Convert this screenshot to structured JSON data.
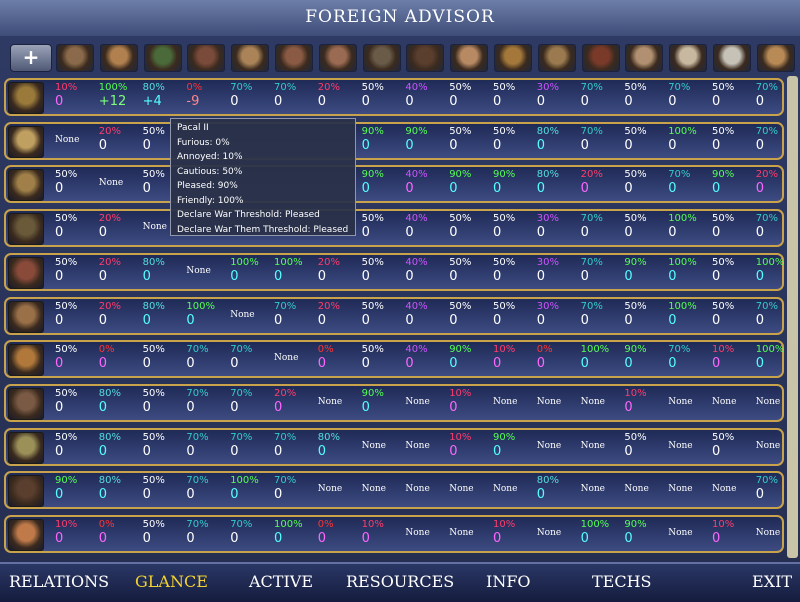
{
  "title": "FOREIGN ADVISOR",
  "header": {
    "zoom_glyph": "+",
    "portrait_colors": [
      "#8a6a4a",
      "#b0804e",
      "#4a6a3a",
      "#7a4a3a",
      "#aa8458",
      "#8a5a44",
      "#9a6a52",
      "#6a5a48",
      "#5a3e2e",
      "#b88a64",
      "#a4783a",
      "#9a7a4e",
      "#7a3a2a",
      "#b09070",
      "#c8b8a0",
      "#c6c2b8",
      "#b88a56"
    ]
  },
  "rows": [
    {
      "portrait": "#9a7a3a",
      "cells": [
        [
          "10%",
          "#ff3d6d",
          "0",
          "#ff66ff"
        ],
        [
          "100%",
          "#55ff55",
          "+12",
          "#7dff7d"
        ],
        [
          "80%",
          "#55dddd",
          "+4",
          "#55ffff"
        ],
        [
          "0%",
          "#ff3333",
          "-9",
          "#ff8888"
        ],
        [
          "70%",
          "#33cccc",
          "0",
          "#ffffff"
        ],
        [
          "70%",
          "#33cccc",
          "0",
          "#ffffff"
        ],
        [
          "20%",
          "#ff3d6d",
          "0",
          "#ffffff"
        ],
        [
          "50%",
          "#ffffff",
          "0",
          "#ffffff"
        ],
        [
          "40%",
          "#cc55ff",
          "0",
          "#ffffff"
        ],
        [
          "50%",
          "#ffffff",
          "0",
          "#ffffff"
        ],
        [
          "50%",
          "#ffffff",
          "0",
          "#ffffff"
        ],
        [
          "30%",
          "#cc55ff",
          "0",
          "#ffffff"
        ],
        [
          "70%",
          "#33cccc",
          "0",
          "#ffffff"
        ],
        [
          "50%",
          "#ffffff",
          "0",
          "#ffffff"
        ],
        [
          "70%",
          "#33cccc",
          "0",
          "#ffffff"
        ],
        [
          "50%",
          "#ffffff",
          "0",
          "#ffffff"
        ],
        [
          "70%",
          "#33cccc",
          "0",
          "#ffffff"
        ]
      ]
    },
    {
      "portrait": "#c0a060",
      "cells": [
        [
          "None",
          "",
          "",
          ""
        ],
        [
          "20%",
          "#ff3d6d",
          "0",
          "#ffffff"
        ],
        [
          "50%",
          "#ffffff",
          "0",
          "#ffffff"
        ],
        [
          "",
          "",
          "",
          ""
        ],
        [
          "",
          "",
          "",
          ""
        ],
        [
          "",
          "",
          "",
          ""
        ],
        [
          "",
          "",
          "",
          ""
        ],
        [
          "90%",
          "#55ff55",
          "0",
          "#55ffff"
        ],
        [
          "90%",
          "#55ff55",
          "0",
          "#55ffff"
        ],
        [
          "50%",
          "#ffffff",
          "0",
          "#ffffff"
        ],
        [
          "50%",
          "#ffffff",
          "0",
          "#ffffff"
        ],
        [
          "80%",
          "#55dddd",
          "0",
          "#55ffff"
        ],
        [
          "70%",
          "#33cccc",
          "0",
          "#ffffff"
        ],
        [
          "50%",
          "#ffffff",
          "0",
          "#ffffff"
        ],
        [
          "100%",
          "#55ff55",
          "0",
          "#ffffff"
        ],
        [
          "50%",
          "#ffffff",
          "0",
          "#ffffff"
        ],
        [
          "70%",
          "#33cccc",
          "0",
          "#ffffff"
        ]
      ]
    },
    {
      "portrait": "#a08048",
      "cells": [
        [
          "50%",
          "#ffffff",
          "0",
          "#ffffff"
        ],
        [
          "None",
          "",
          "",
          ""
        ],
        [
          "50%",
          "#ffffff",
          "0",
          "#ffffff"
        ],
        [
          "",
          "",
          "",
          ""
        ],
        [
          "",
          "",
          "",
          ""
        ],
        [
          "",
          "",
          "",
          ""
        ],
        [
          "",
          "",
          "",
          ""
        ],
        [
          "90%",
          "#55ff55",
          "0",
          "#55ffff"
        ],
        [
          "40%",
          "#cc55ff",
          "0",
          "#ff66ff"
        ],
        [
          "90%",
          "#55ff55",
          "0",
          "#55ffff"
        ],
        [
          "90%",
          "#55ff55",
          "0",
          "#55ffff"
        ],
        [
          "80%",
          "#55dddd",
          "0",
          "#55ffff"
        ],
        [
          "20%",
          "#ff3d6d",
          "0",
          "#ff66ff"
        ],
        [
          "50%",
          "#ffffff",
          "0",
          "#ffffff"
        ],
        [
          "70%",
          "#33cccc",
          "0",
          "#55ffff"
        ],
        [
          "90%",
          "#55ff55",
          "0",
          "#55ffff"
        ],
        [
          "20%",
          "#ff3d6d",
          "0",
          "#ff66ff"
        ]
      ]
    },
    {
      "portrait": "#6a5a3a",
      "cells": [
        [
          "50%",
          "#ffffff",
          "0",
          "#ffffff"
        ],
        [
          "20%",
          "#ff3d6d",
          "0",
          "#ffffff"
        ],
        [
          "None",
          "",
          "",
          ""
        ],
        [
          "",
          "",
          "",
          ""
        ],
        [
          "",
          "",
          "",
          ""
        ],
        [
          "",
          "",
          "",
          ""
        ],
        [
          "",
          "",
          "",
          ""
        ],
        [
          "50%",
          "#ffffff",
          "0",
          "#ffffff"
        ],
        [
          "40%",
          "#cc55ff",
          "0",
          "#ffffff"
        ],
        [
          "50%",
          "#ffffff",
          "0",
          "#ffffff"
        ],
        [
          "50%",
          "#ffffff",
          "0",
          "#ffffff"
        ],
        [
          "30%",
          "#cc55ff",
          "0",
          "#ffffff"
        ],
        [
          "70%",
          "#33cccc",
          "0",
          "#ffffff"
        ],
        [
          "50%",
          "#ffffff",
          "0",
          "#ffffff"
        ],
        [
          "100%",
          "#55ff55",
          "0",
          "#ffffff"
        ],
        [
          "50%",
          "#ffffff",
          "0",
          "#ffffff"
        ],
        [
          "70%",
          "#33cccc",
          "0",
          "#ffffff"
        ]
      ]
    },
    {
      "portrait": "#8a4a3a",
      "cells": [
        [
          "50%",
          "#ffffff",
          "0",
          "#ffffff"
        ],
        [
          "20%",
          "#ff3d6d",
          "0",
          "#ffffff"
        ],
        [
          "80%",
          "#55dddd",
          "0",
          "#55ffff"
        ],
        [
          "None",
          "",
          "",
          ""
        ],
        [
          "100%",
          "#55ff55",
          "0",
          "#55ffff"
        ],
        [
          "100%",
          "#55ff55",
          "0",
          "#55ffff"
        ],
        [
          "20%",
          "#ff3d6d",
          "0",
          "#ffffff"
        ],
        [
          "50%",
          "#ffffff",
          "0",
          "#ffffff"
        ],
        [
          "40%",
          "#cc55ff",
          "0",
          "#ffffff"
        ],
        [
          "50%",
          "#ffffff",
          "0",
          "#ffffff"
        ],
        [
          "50%",
          "#ffffff",
          "0",
          "#ffffff"
        ],
        [
          "30%",
          "#cc55ff",
          "0",
          "#ffffff"
        ],
        [
          "70%",
          "#33cccc",
          "0",
          "#ffffff"
        ],
        [
          "90%",
          "#55ff55",
          "0",
          "#55ffff"
        ],
        [
          "100%",
          "#55ff55",
          "0",
          "#55ffff"
        ],
        [
          "50%",
          "#ffffff",
          "0",
          "#ffffff"
        ],
        [
          "100%",
          "#55ff55",
          "0",
          "#55ffff"
        ]
      ]
    },
    {
      "portrait": "#9a7048",
      "cells": [
        [
          "50%",
          "#ffffff",
          "0",
          "#ffffff"
        ],
        [
          "20%",
          "#ff3d6d",
          "0",
          "#ffffff"
        ],
        [
          "80%",
          "#55dddd",
          "0",
          "#55ffff"
        ],
        [
          "100%",
          "#55ff55",
          "0",
          "#55ffff"
        ],
        [
          "None",
          "",
          "",
          ""
        ],
        [
          "70%",
          "#33cccc",
          "0",
          "#ffffff"
        ],
        [
          "20%",
          "#ff3d6d",
          "0",
          "#ffffff"
        ],
        [
          "50%",
          "#ffffff",
          "0",
          "#ffffff"
        ],
        [
          "40%",
          "#cc55ff",
          "0",
          "#ffffff"
        ],
        [
          "50%",
          "#ffffff",
          "0",
          "#ffffff"
        ],
        [
          "50%",
          "#ffffff",
          "0",
          "#ffffff"
        ],
        [
          "30%",
          "#cc55ff",
          "0",
          "#ffffff"
        ],
        [
          "70%",
          "#33cccc",
          "0",
          "#ffffff"
        ],
        [
          "50%",
          "#ffffff",
          "0",
          "#ffffff"
        ],
        [
          "100%",
          "#55ff55",
          "0",
          "#55ffff"
        ],
        [
          "50%",
          "#ffffff",
          "0",
          "#ffffff"
        ],
        [
          "70%",
          "#33cccc",
          "0",
          "#ffffff"
        ]
      ]
    },
    {
      "portrait": "#b0783a",
      "cells": [
        [
          "50%",
          "#ffffff",
          "0",
          "#ff66ff"
        ],
        [
          "0%",
          "#ff3333",
          "0",
          "#ff66ff"
        ],
        [
          "50%",
          "#ffffff",
          "0",
          "#ffffff"
        ],
        [
          "70%",
          "#33cccc",
          "0",
          "#ffffff"
        ],
        [
          "70%",
          "#33cccc",
          "0",
          "#ffffff"
        ],
        [
          "None",
          "",
          "",
          ""
        ],
        [
          "0%",
          "#ff3333",
          "0",
          "#ff66ff"
        ],
        [
          "50%",
          "#ffffff",
          "0",
          "#ffffff"
        ],
        [
          "40%",
          "#cc55ff",
          "0",
          "#ff66ff"
        ],
        [
          "90%",
          "#55ff55",
          "0",
          "#55ffff"
        ],
        [
          "10%",
          "#ff3d6d",
          "0",
          "#ff66ff"
        ],
        [
          "0%",
          "#ff3333",
          "0",
          "#ff66ff"
        ],
        [
          "100%",
          "#55ff55",
          "0",
          "#55ffff"
        ],
        [
          "90%",
          "#55ff55",
          "0",
          "#55ffff"
        ],
        [
          "70%",
          "#33cccc",
          "0",
          "#55ffff"
        ],
        [
          "10%",
          "#ff3d6d",
          "0",
          "#ff66ff"
        ],
        [
          "100%",
          "#55ff55",
          "0",
          "#55ffff"
        ]
      ]
    },
    {
      "portrait": "#7a5a44",
      "cells": [
        [
          "50%",
          "#ffffff",
          "0",
          "#ffffff"
        ],
        [
          "80%",
          "#55dddd",
          "0",
          "#55ffff"
        ],
        [
          "50%",
          "#ffffff",
          "0",
          "#ffffff"
        ],
        [
          "70%",
          "#33cccc",
          "0",
          "#ffffff"
        ],
        [
          "70%",
          "#33cccc",
          "0",
          "#ffffff"
        ],
        [
          "20%",
          "#ff3d6d",
          "0",
          "#ff66ff"
        ],
        [
          "None",
          "",
          "",
          ""
        ],
        [
          "90%",
          "#55ff55",
          "0",
          "#55ffff"
        ],
        [
          "None",
          "",
          "",
          ""
        ],
        [
          "10%",
          "#ff3d6d",
          "0",
          "#ff66ff"
        ],
        [
          "None",
          "",
          "",
          ""
        ],
        [
          "None",
          "",
          "",
          ""
        ],
        [
          "None",
          "",
          "",
          ""
        ],
        [
          "10%",
          "#ff3d6d",
          "0",
          "#ff66ff"
        ],
        [
          "None",
          "",
          "",
          ""
        ],
        [
          "None",
          "",
          "",
          ""
        ],
        [
          "None",
          "",
          "",
          ""
        ]
      ]
    },
    {
      "portrait": "#9a9058",
      "cells": [
        [
          "50%",
          "#ffffff",
          "0",
          "#ffffff"
        ],
        [
          "80%",
          "#55dddd",
          "0",
          "#55ffff"
        ],
        [
          "50%",
          "#ffffff",
          "0",
          "#ffffff"
        ],
        [
          "70%",
          "#33cccc",
          "0",
          "#ffffff"
        ],
        [
          "70%",
          "#33cccc",
          "0",
          "#ffffff"
        ],
        [
          "70%",
          "#33cccc",
          "0",
          "#ffffff"
        ],
        [
          "80%",
          "#55dddd",
          "0",
          "#55ffff"
        ],
        [
          "None",
          "",
          "",
          ""
        ],
        [
          "None",
          "",
          "",
          ""
        ],
        [
          "10%",
          "#ff3d6d",
          "0",
          "#ff66ff"
        ],
        [
          "90%",
          "#55ff55",
          "0",
          "#55ffff"
        ],
        [
          "None",
          "",
          "",
          ""
        ],
        [
          "None",
          "",
          "",
          ""
        ],
        [
          "50%",
          "#ffffff",
          "0",
          "#ffffff"
        ],
        [
          "None",
          "",
          "",
          ""
        ],
        [
          "50%",
          "#ffffff",
          "0",
          "#ffffff"
        ],
        [
          "None",
          "",
          "",
          ""
        ]
      ]
    },
    {
      "portrait": "#5a3e2e",
      "cells": [
        [
          "90%",
          "#55ff55",
          "0",
          "#55ffff"
        ],
        [
          "80%",
          "#55dddd",
          "0",
          "#55ffff"
        ],
        [
          "50%",
          "#ffffff",
          "0",
          "#ffffff"
        ],
        [
          "70%",
          "#33cccc",
          "0",
          "#ffffff"
        ],
        [
          "100%",
          "#55ff55",
          "0",
          "#55ffff"
        ],
        [
          "70%",
          "#33cccc",
          "0",
          "#ffffff"
        ],
        [
          "None",
          "",
          "",
          ""
        ],
        [
          "None",
          "",
          "",
          ""
        ],
        [
          "None",
          "",
          "",
          ""
        ],
        [
          "None",
          "",
          "",
          ""
        ],
        [
          "None",
          "",
          "",
          ""
        ],
        [
          "80%",
          "#55dddd",
          "0",
          "#55ffff"
        ],
        [
          "None",
          "",
          "",
          ""
        ],
        [
          "None",
          "",
          "",
          ""
        ],
        [
          "None",
          "",
          "",
          ""
        ],
        [
          "None",
          "",
          "",
          ""
        ],
        [
          "70%",
          "#33cccc",
          "0",
          "#ffffff"
        ]
      ]
    },
    {
      "portrait": "#c07a4a",
      "cells": [
        [
          "10%",
          "#ff3d6d",
          "0",
          "#ff66ff"
        ],
        [
          "0%",
          "#ff3333",
          "0",
          "#ff66ff"
        ],
        [
          "50%",
          "#ffffff",
          "0",
          "#ffffff"
        ],
        [
          "70%",
          "#33cccc",
          "0",
          "#ffffff"
        ],
        [
          "70%",
          "#33cccc",
          "0",
          "#ffffff"
        ],
        [
          "100%",
          "#55ff55",
          "0",
          "#55ffff"
        ],
        [
          "0%",
          "#ff3333",
          "0",
          "#ff66ff"
        ],
        [
          "10%",
          "#ff3d6d",
          "0",
          "#ff66ff"
        ],
        [
          "None",
          "",
          "",
          ""
        ],
        [
          "None",
          "",
          "",
          ""
        ],
        [
          "10%",
          "#ff3d6d",
          "0",
          "#ff66ff"
        ],
        [
          "None",
          "",
          "",
          ""
        ],
        [
          "100%",
          "#55ff55",
          "0",
          "#55ffff"
        ],
        [
          "90%",
          "#55ff55",
          "0",
          "#55ffff"
        ],
        [
          "None",
          "",
          "",
          ""
        ],
        [
          "10%",
          "#ff3d6d",
          "0",
          "#ff66ff"
        ],
        [
          "None",
          "",
          "",
          ""
        ]
      ]
    }
  ],
  "tooltip": {
    "lines": [
      "Pacal II",
      "Furious: 0%",
      "Annoyed: 10%",
      "Cautious: 50%",
      "Pleased: 90%",
      "Friendly: 100%",
      "Declare War Threshold: Pleased",
      "Declare War Them Threshold: Pleased"
    ]
  },
  "footer": {
    "tabs": [
      {
        "label": "RELATIONS",
        "color": "#ffffff"
      },
      {
        "label": "GLANCE",
        "color": "#f2d22e"
      },
      {
        "label": "ACTIVE",
        "color": "#ffffff"
      },
      {
        "label": "RESOURCES",
        "color": "#ffffff"
      },
      {
        "label": "INFO",
        "color": "#ffffff"
      },
      {
        "label": "TECHS",
        "color": "#ffffff"
      },
      {
        "label": "EXIT",
        "color": "#ffffff"
      }
    ]
  }
}
